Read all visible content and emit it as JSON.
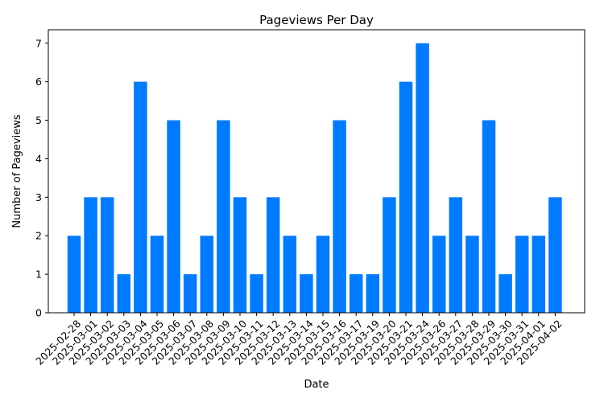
{
  "chart_data": {
    "type": "bar",
    "title": "Pageviews Per Day",
    "xlabel": "Date",
    "ylabel": "Number of Pageviews",
    "ylim": [
      0,
      7.35
    ],
    "yticks": [
      0,
      1,
      2,
      3,
      4,
      5,
      6,
      7
    ],
    "bar_color": "#007bff",
    "grid": false,
    "categories": [
      "2025-02-28",
      "2025-03-01",
      "2025-03-02",
      "2025-03-03",
      "2025-03-04",
      "2025-03-05",
      "2025-03-06",
      "2025-03-07",
      "2025-03-08",
      "2025-03-09",
      "2025-03-10",
      "2025-03-11",
      "2025-03-12",
      "2025-03-13",
      "2025-03-14",
      "2025-03-15",
      "2025-03-16",
      "2025-03-17",
      "2025-03-19",
      "2025-03-20",
      "2025-03-21",
      "2025-03-24",
      "2025-03-26",
      "2025-03-27",
      "2025-03-28",
      "2025-03-29",
      "2025-03-30",
      "2025-03-31",
      "2025-04-01",
      "2025-04-02"
    ],
    "values": [
      2,
      3,
      3,
      1,
      6,
      2,
      5,
      1,
      2,
      5,
      3,
      1,
      3,
      2,
      1,
      2,
      5,
      1,
      1,
      3,
      6,
      7,
      2,
      3,
      2,
      5,
      1,
      2,
      2,
      3
    ]
  }
}
